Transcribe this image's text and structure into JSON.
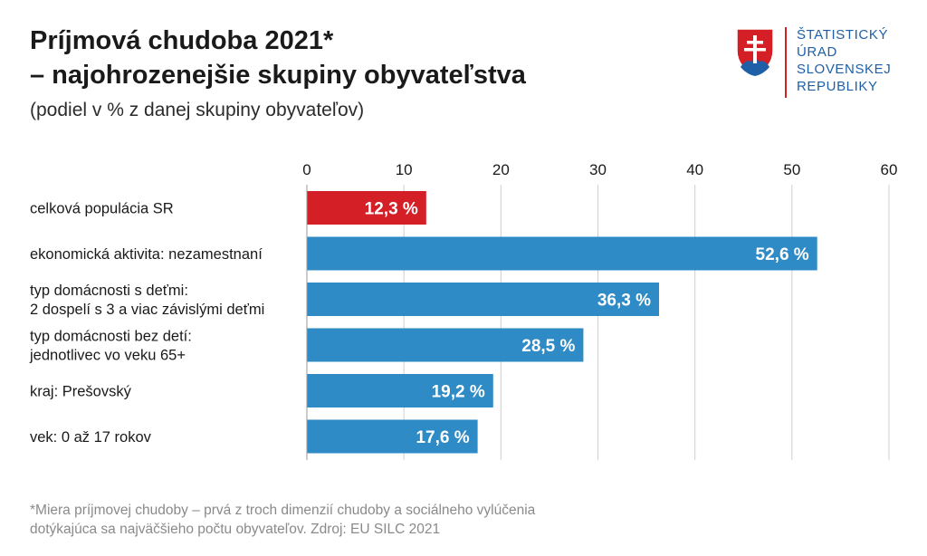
{
  "header": {
    "title_line1": "Príjmová chudoba 2021*",
    "title_line2": "– najohrozenejšie skupiny obyvateľstva",
    "subtitle": "(podiel v % z danej skupiny obyvateľov)"
  },
  "logo": {
    "lines": [
      "ŠTATISTICKÝ",
      "ÚRAD",
      "SLOVENSKEJ",
      "REPUBLIKY"
    ],
    "icon": "slovak-coat-of-arms-icon"
  },
  "footnote": {
    "line1": "*Miera príjmovej chudoby – prvá z troch dimenzií chudoby a sociálneho vylúčenia",
    "line2": "dotýkajúca sa najväčšieho počtu obyvateľov. Zdroj: EU SILC 2021"
  },
  "colors": {
    "highlight": "#d41f26",
    "bar": "#2e8bc6",
    "grid": "#cfcfcf",
    "text": "#1a1a1a"
  },
  "chart_data": {
    "type": "bar",
    "orientation": "horizontal",
    "categories": [
      [
        "celková populácia SR"
      ],
      [
        "ekonomická aktivita: nezamestnaní"
      ],
      [
        "typ domácnosti s deťmi:",
        "2 dospelí s 3 a viac závislými deťmi"
      ],
      [
        "typ domácnosti bez detí:",
        "jednotlivec vo veku 65+"
      ],
      [
        "kraj: Prešovský"
      ],
      [
        "vek: 0 až 17 rokov"
      ]
    ],
    "values": [
      12.3,
      52.6,
      36.3,
      28.5,
      19.2,
      17.6
    ],
    "value_labels": [
      "12,3 %",
      "52,6 %",
      "36,3 %",
      "28,5 %",
      "19,2 %",
      "17,6 %"
    ],
    "highlight_index": 0,
    "xlim": [
      0,
      60
    ],
    "xticks": [
      0,
      10,
      20,
      30,
      40,
      50,
      60
    ],
    "grid": true,
    "axis_position": "top"
  }
}
